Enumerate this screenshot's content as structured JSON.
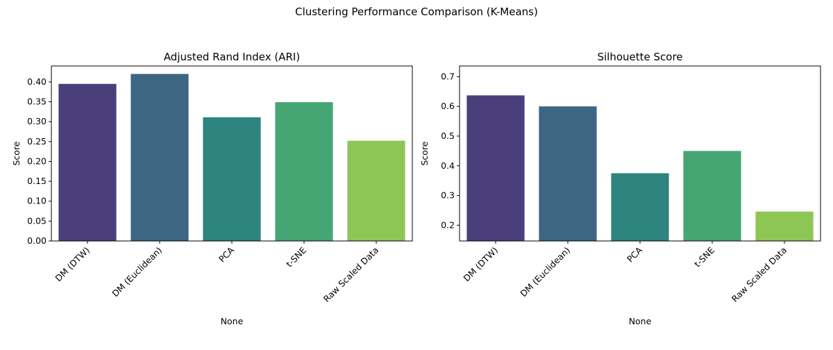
{
  "figure": {
    "suptitle": "Clustering Performance Comparison (K-Means)"
  },
  "chart_data": [
    {
      "type": "bar",
      "title": "Adjusted Rand Index (ARI)",
      "xlabel": "None",
      "ylabel": "Score",
      "categories": [
        "DM (DTW)",
        "DM (Euclidean)",
        "PCA",
        "t-SNE",
        "Raw Scaled Data"
      ],
      "values": [
        0.395,
        0.42,
        0.311,
        0.349,
        0.252
      ],
      "colors": [
        "#4a3f7b",
        "#3d6683",
        "#2e847f",
        "#45a674",
        "#8ec655"
      ],
      "ylim": [
        0,
        0.44
      ],
      "yticks": [
        0.0,
        0.05,
        0.1,
        0.15,
        0.2,
        0.25,
        0.3,
        0.35,
        0.4
      ],
      "ytick_labels": [
        "0.00",
        "0.05",
        "0.10",
        "0.15",
        "0.20",
        "0.25",
        "0.30",
        "0.35",
        "0.40"
      ],
      "grid": false,
      "legend": "none"
    },
    {
      "type": "bar",
      "title": "Silhouette Score",
      "xlabel": "None",
      "ylabel": "Score",
      "categories": [
        "DM (DTW)",
        "DM (Euclidean)",
        "PCA",
        "t-SNE",
        "Raw Scaled Data"
      ],
      "values": [
        0.637,
        0.6,
        0.375,
        0.45,
        0.246
      ],
      "colors": [
        "#4a3f7b",
        "#3d6683",
        "#2e847f",
        "#45a674",
        "#8ec655"
      ],
      "ylim": [
        0.147,
        0.736
      ],
      "yticks": [
        0.2,
        0.3,
        0.4,
        0.5,
        0.6,
        0.7
      ],
      "ytick_labels": [
        "0.2",
        "0.3",
        "0.4",
        "0.5",
        "0.6",
        "0.7"
      ],
      "grid": false,
      "legend": "none"
    }
  ]
}
